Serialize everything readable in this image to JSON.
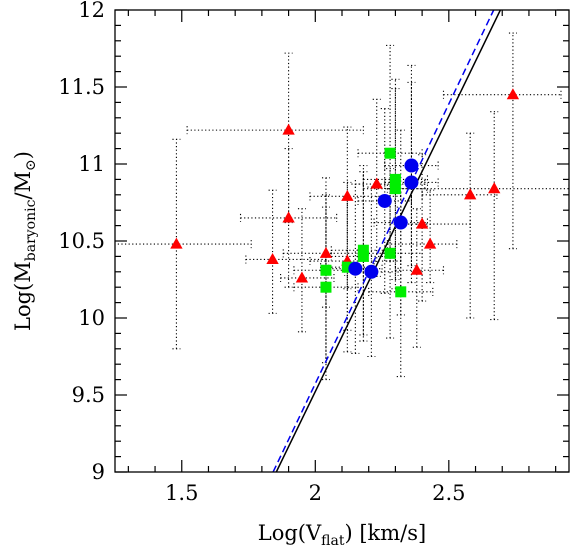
{
  "chart_data": {
    "type": "scatter",
    "xlabel": {
      "prefix": "Log(V",
      "sub": "flat",
      "suffix": ")  [km/s]"
    },
    "ylabel": {
      "prefix": "Log(M",
      "sub": "baryonic",
      "mid": "/M",
      "sub2": "⊙",
      "suffix": ")"
    },
    "xlim": [
      1.25,
      2.95
    ],
    "ylim": [
      9,
      12
    ],
    "xticks": [
      1.5,
      2,
      2.5
    ],
    "xtick_labels": [
      "1.5",
      "2",
      "2.5"
    ],
    "yticks": [
      9,
      9.5,
      10,
      10.5,
      11,
      11.5,
      12
    ],
    "ytick_labels": [
      "9",
      "9.5",
      "10",
      "10.5",
      "11",
      "11.5",
      "12"
    ],
    "grid": false,
    "series": [
      {
        "marker": "triangle",
        "color": "#ff0000",
        "points": [
          {
            "x": 1.48,
            "y": 10.48,
            "xerr": [
              0.26,
              0.28
            ],
            "yerr": [
              0.68,
              0.68
            ]
          },
          {
            "x": 1.84,
            "y": 10.38,
            "xerr": [
              0.1,
              0.2
            ],
            "yerr": [
              0.35,
              0.45
            ]
          },
          {
            "x": 1.9,
            "y": 11.22,
            "xerr": [
              0.38,
              0.28
            ],
            "yerr": [
              0.6,
              0.5
            ]
          },
          {
            "x": 1.9,
            "y": 10.65,
            "xerr": [
              0.18,
              0.18
            ],
            "yerr": [
              0.45,
              0.45
            ]
          },
          {
            "x": 1.95,
            "y": 10.26,
            "xerr": [
              0.08,
              0.12
            ],
            "yerr": [
              0.35,
              0.45
            ]
          },
          {
            "x": 2.04,
            "y": 10.42,
            "xerr": [
              0.16,
              0.12
            ],
            "yerr": [
              0.35,
              0.3
            ]
          },
          {
            "x": 2.12,
            "y": 10.79,
            "xerr": [
              0.14,
              0.2
            ],
            "yerr": [
              0.6,
              0.45
            ]
          },
          {
            "x": 2.12,
            "y": 10.37,
            "xerr": [
              0.14,
              0.2
            ],
            "yerr": [
              0.45,
              0.4
            ]
          },
          {
            "x": 2.23,
            "y": 10.87,
            "xerr": [
              0.08,
              0.18
            ],
            "yerr": [
              0.6,
              0.55
            ]
          },
          {
            "x": 2.38,
            "y": 10.31,
            "xerr": [
              0.08,
              0.1
            ],
            "yerr": [
              0.5,
              0.4
            ]
          },
          {
            "x": 2.4,
            "y": 10.61,
            "xerr": [
              0.12,
              0.18
            ],
            "yerr": [
              0.5,
              0.45
            ]
          },
          {
            "x": 2.43,
            "y": 10.48,
            "xerr": [
              0.16,
              0.1
            ],
            "yerr": [
              0.25,
              0.35
            ]
          },
          {
            "x": 2.58,
            "y": 10.8,
            "xerr": [
              0.18,
              0.1
            ],
            "yerr": [
              0.8,
              0.4
            ]
          },
          {
            "x": 2.67,
            "y": 10.84,
            "xerr": [
              0.4,
              0.28
            ],
            "yerr": [
              0.85,
              0.5
            ]
          },
          {
            "x": 2.74,
            "y": 11.45,
            "xerr": [
              0.26,
              0.18
            ],
            "yerr": [
              1.0,
              0.4
            ]
          }
        ]
      },
      {
        "marker": "square",
        "color": "#00ee00",
        "points": [
          {
            "x": 2.04,
            "y": 10.31,
            "xerr": [
              0.12,
              0.12
            ],
            "yerr": [
              0.6,
              0.6
            ]
          },
          {
            "x": 2.04,
            "y": 10.2,
            "xerr": [
              0.12,
              0.12
            ],
            "yerr": [
              0.6,
              0.6
            ]
          },
          {
            "x": 2.12,
            "y": 10.33,
            "xerr": [
              0.1,
              0.1
            ],
            "yerr": [
              0.55,
              0.55
            ]
          },
          {
            "x": 2.18,
            "y": 10.44,
            "xerr": [
              0.12,
              0.12
            ],
            "yerr": [
              0.55,
              0.55
            ]
          },
          {
            "x": 2.18,
            "y": 10.4,
            "xerr": [
              0.12,
              0.12
            ],
            "yerr": [
              0.55,
              0.55
            ]
          },
          {
            "x": 2.28,
            "y": 11.07,
            "xerr": [
              0.12,
              0.12
            ],
            "yerr": [
              0.7,
              0.7
            ]
          },
          {
            "x": 2.28,
            "y": 10.42,
            "xerr": [
              0.12,
              0.12
            ],
            "yerr": [
              0.55,
              0.55
            ]
          },
          {
            "x": 2.3,
            "y": 10.9,
            "xerr": [
              0.12,
              0.12
            ],
            "yerr": [
              0.65,
              0.65
            ]
          },
          {
            "x": 2.3,
            "y": 10.84,
            "xerr": [
              0.12,
              0.12
            ],
            "yerr": [
              0.65,
              0.65
            ]
          },
          {
            "x": 2.32,
            "y": 10.17,
            "xerr": [
              0.12,
              0.12
            ],
            "yerr": [
              0.55,
              0.55
            ]
          }
        ]
      },
      {
        "marker": "circle",
        "color": "#0000ee",
        "points": [
          {
            "x": 2.15,
            "y": 10.32,
            "xerr": [
              0.1,
              0.1
            ],
            "yerr": [
              0.55,
              0.55
            ]
          },
          {
            "x": 2.21,
            "y": 10.3,
            "xerr": [
              0.1,
              0.1
            ],
            "yerr": [
              0.55,
              0.55
            ]
          },
          {
            "x": 2.26,
            "y": 10.76,
            "xerr": [
              0.1,
              0.1
            ],
            "yerr": [
              0.6,
              0.6
            ]
          },
          {
            "x": 2.32,
            "y": 10.62,
            "xerr": [
              0.1,
              0.1
            ],
            "yerr": [
              0.6,
              0.6
            ]
          },
          {
            "x": 2.36,
            "y": 10.99,
            "xerr": [
              0.1,
              0.1
            ],
            "yerr": [
              0.65,
              0.65
            ]
          },
          {
            "x": 2.36,
            "y": 10.88,
            "xerr": [
              0.1,
              0.1
            ],
            "yerr": [
              0.65,
              0.65
            ]
          }
        ]
      }
    ],
    "lines": [
      {
        "style": "solid",
        "color": "#000000",
        "x": [
          1.854,
          2.693
        ],
        "y": [
          9.0,
          12.0
        ]
      },
      {
        "style": "dashed",
        "color": "#0000ee",
        "x": [
          1.842,
          2.668
        ],
        "y": [
          9.0,
          12.0
        ]
      }
    ]
  }
}
